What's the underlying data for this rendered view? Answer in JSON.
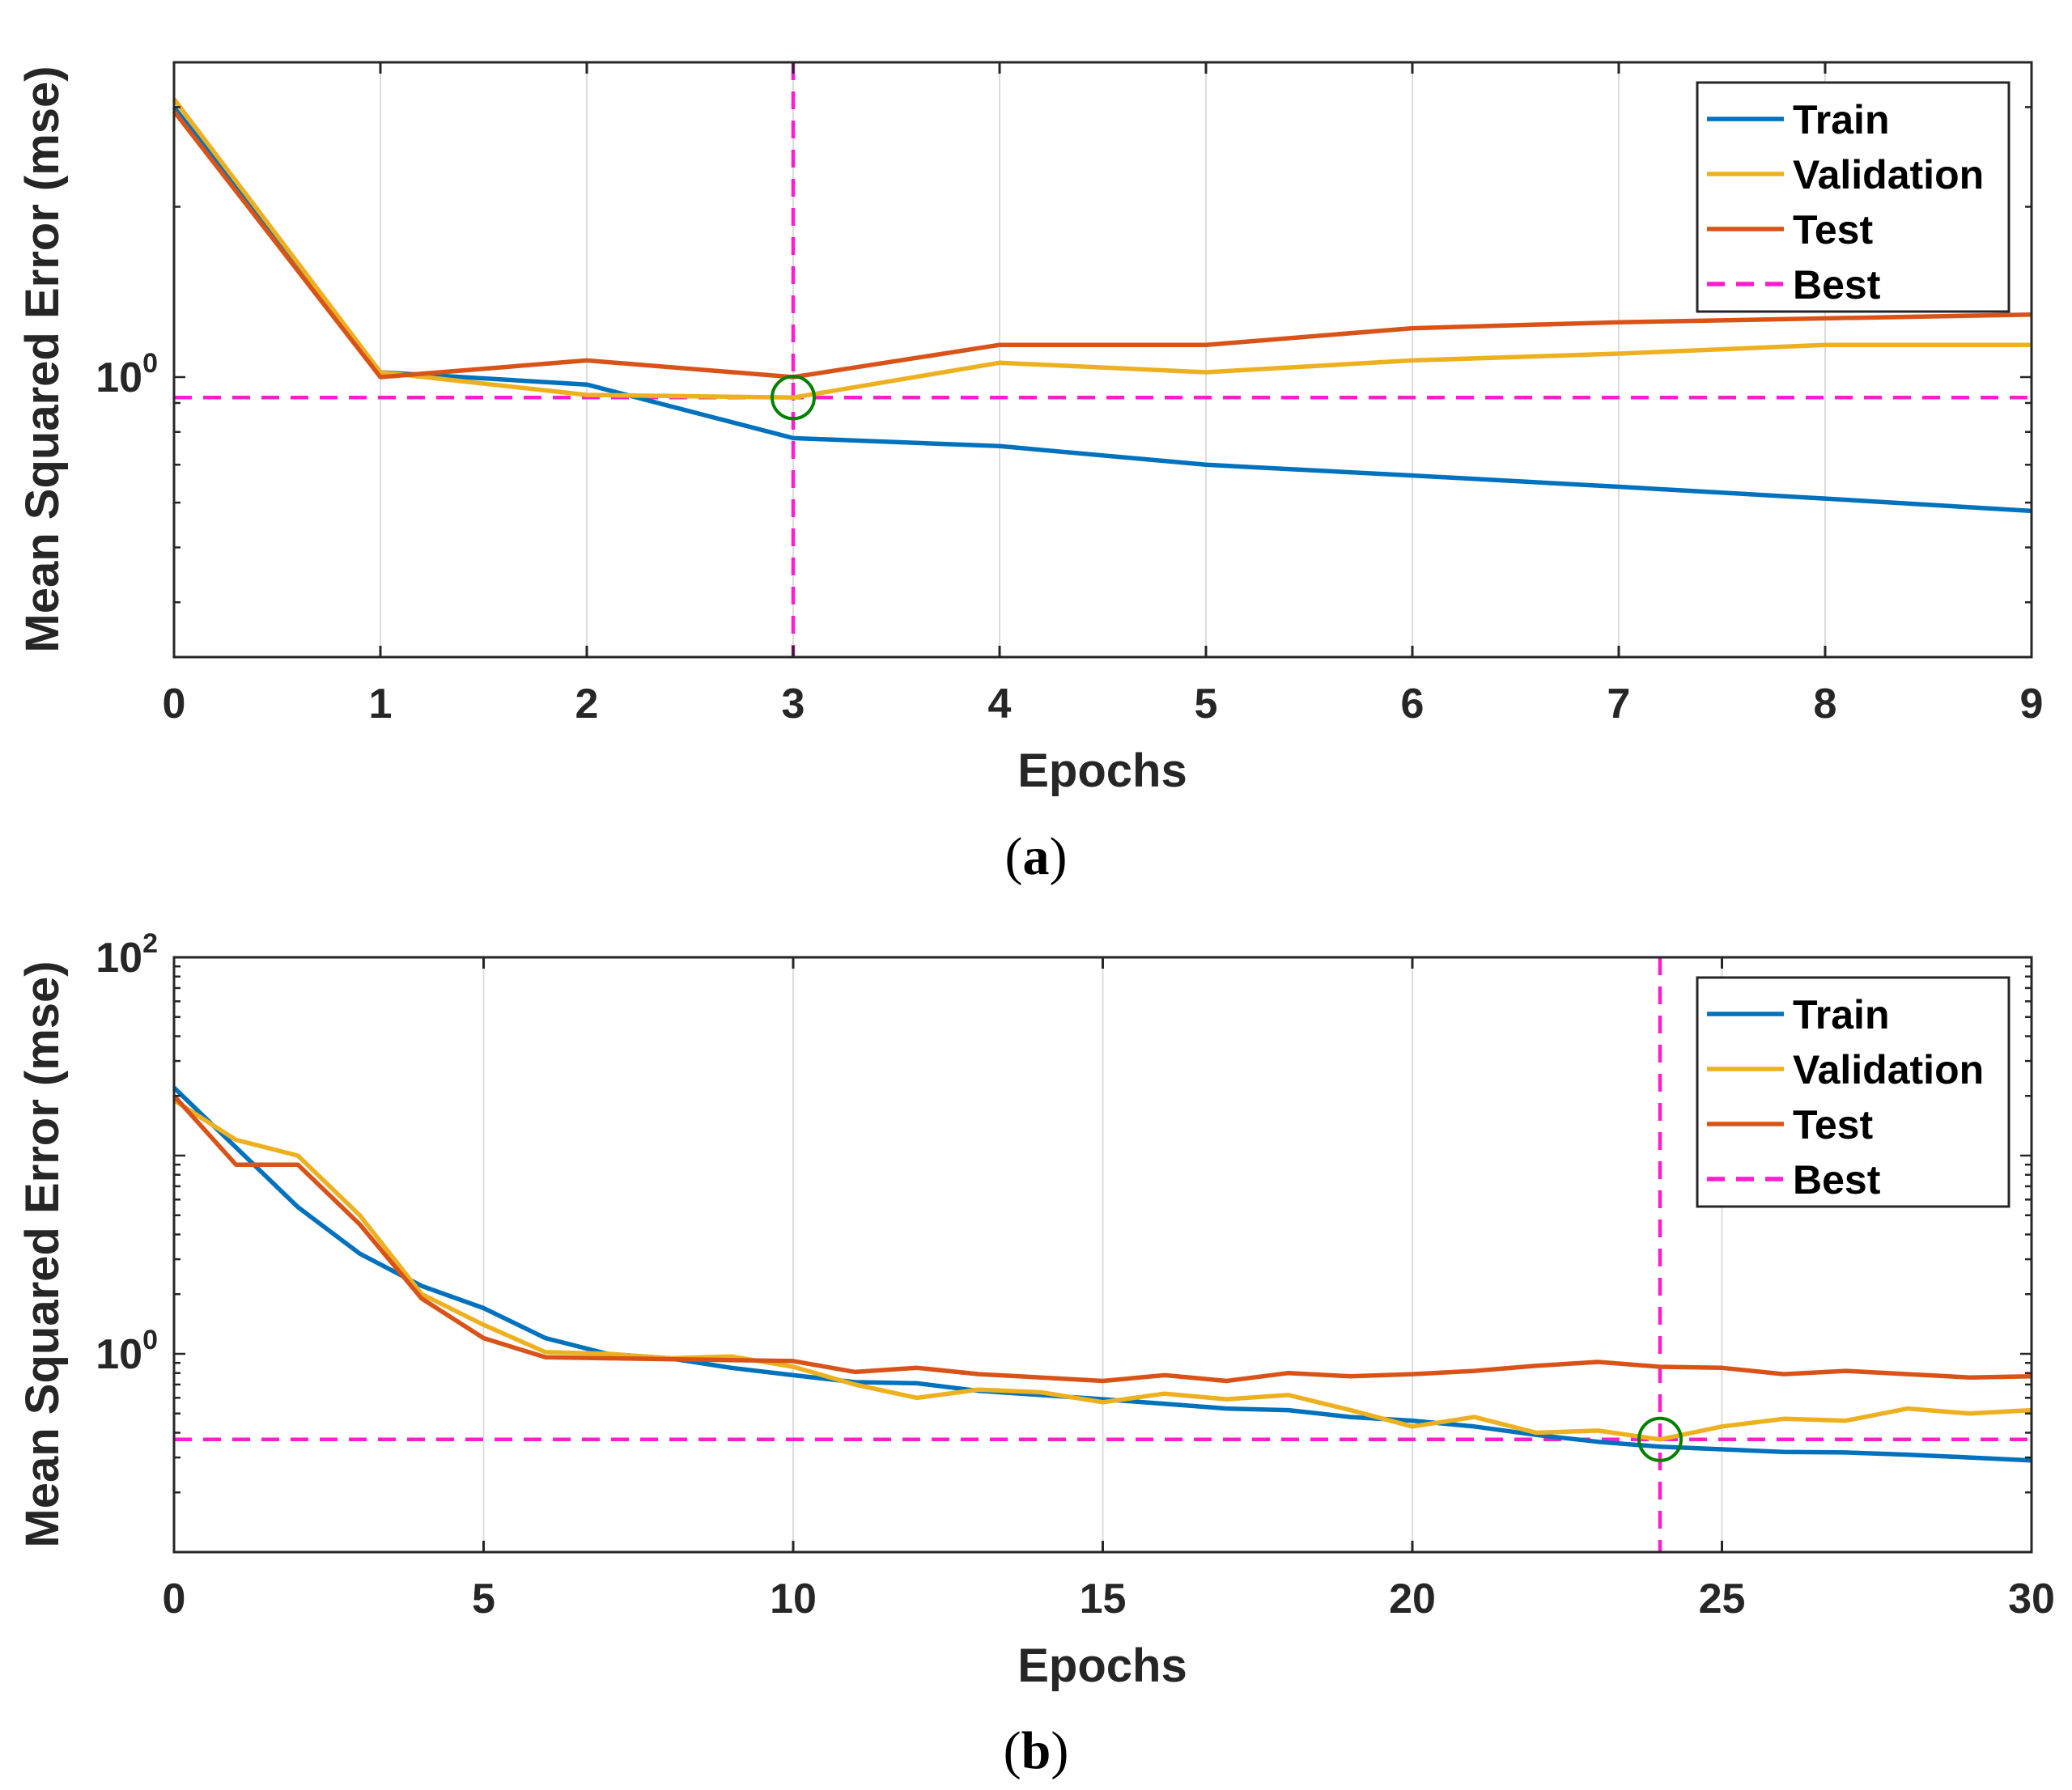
{
  "chart_data": [
    {
      "type": "line",
      "caption": "(a)",
      "caption_letter": "a",
      "xlabel": "Epochs",
      "ylabel": "Mean Squared Error  (mse)",
      "yscale": "log",
      "xlim": [
        0,
        9
      ],
      "ylim": [
        0.32,
        3.6
      ],
      "x_ticks": [
        "0",
        "1",
        "2",
        "3",
        "4",
        "5",
        "6",
        "7",
        "8",
        "9"
      ],
      "y_ticks": [
        {
          "value": 1,
          "base": "10",
          "exponent": "0"
        }
      ],
      "legend": [
        "Train",
        "Validation",
        "Test",
        "Best"
      ],
      "legend_position": "top-right",
      "best": {
        "epoch": 3,
        "value": 0.92
      },
      "series": [
        {
          "name": "Train",
          "color": "#0072BD",
          "x": [
            0,
            1,
            2,
            3,
            4,
            5,
            6,
            7,
            8,
            9
          ],
          "values": [
            3.0,
            1.02,
            0.97,
            0.78,
            0.755,
            0.7,
            0.67,
            0.64,
            0.61,
            0.58
          ]
        },
        {
          "name": "Validation",
          "color": "#EDB120",
          "x": [
            0,
            1,
            2,
            3,
            4,
            5,
            6,
            7,
            8,
            9
          ],
          "values": [
            3.1,
            1.02,
            0.93,
            0.92,
            1.06,
            1.02,
            1.07,
            1.1,
            1.14,
            1.14
          ]
        },
        {
          "name": "Test",
          "color": "#D95319",
          "x": [
            0,
            1,
            2,
            3,
            4,
            5,
            6,
            7,
            8,
            9
          ],
          "values": [
            2.95,
            1.0,
            1.07,
            1.0,
            1.14,
            1.14,
            1.22,
            1.25,
            1.27,
            1.29
          ]
        }
      ]
    },
    {
      "type": "line",
      "caption": "(b)",
      "caption_letter": "b",
      "xlabel": "Epochs",
      "ylabel": "Mean Squared Error  (mse)",
      "yscale": "log",
      "xlim": [
        0,
        30
      ],
      "ylim": [
        0.1,
        100
      ],
      "x_ticks": [
        "0",
        "5",
        "10",
        "15",
        "20",
        "25",
        "30"
      ],
      "y_ticks": [
        {
          "value": 1,
          "base": "10",
          "exponent": "0"
        },
        {
          "value": 100,
          "base": "10",
          "exponent": "2"
        }
      ],
      "legend": [
        "Train",
        "Validation",
        "Test",
        "Best"
      ],
      "legend_position": "top-right",
      "best": {
        "epoch": 24,
        "value": 0.37
      },
      "series": [
        {
          "name": "Train",
          "color": "#0072BD",
          "x": [
            0,
            1,
            2,
            3,
            4,
            5,
            6,
            7,
            8,
            9,
            10,
            11,
            12,
            13,
            14,
            15,
            16,
            17,
            18,
            19,
            20,
            21,
            22,
            23,
            24,
            25,
            26,
            27,
            28,
            29,
            30
          ],
          "values": [
            22,
            11,
            5.5,
            3.2,
            2.2,
            1.7,
            1.2,
            1.0,
            0.95,
            0.85,
            0.78,
            0.72,
            0.71,
            0.65,
            0.62,
            0.59,
            0.56,
            0.53,
            0.52,
            0.48,
            0.46,
            0.43,
            0.39,
            0.36,
            0.34,
            0.33,
            0.32,
            0.318,
            0.31,
            0.3,
            0.29
          ]
        },
        {
          "name": "Validation",
          "color": "#EDB120",
          "x": [
            0,
            1,
            2,
            3,
            4,
            5,
            6,
            7,
            8,
            9,
            10,
            11,
            12,
            13,
            14,
            15,
            16,
            17,
            18,
            19,
            20,
            21,
            22,
            23,
            24,
            25,
            26,
            27,
            28,
            29,
            30
          ],
          "values": [
            19,
            12,
            10,
            5,
            2,
            1.4,
            1.02,
            1.0,
            0.95,
            0.97,
            0.86,
            0.7,
            0.6,
            0.66,
            0.64,
            0.57,
            0.63,
            0.59,
            0.62,
            0.52,
            0.43,
            0.48,
            0.4,
            0.41,
            0.37,
            0.43,
            0.47,
            0.46,
            0.53,
            0.5,
            0.52
          ]
        },
        {
          "name": "Test",
          "color": "#D95319",
          "x": [
            0,
            1,
            2,
            3,
            4,
            5,
            6,
            7,
            8,
            9,
            10,
            11,
            12,
            13,
            14,
            15,
            16,
            17,
            18,
            19,
            20,
            21,
            22,
            23,
            24,
            25,
            26,
            27,
            28,
            29,
            30
          ],
          "values": [
            20,
            9,
            9,
            4.5,
            1.9,
            1.2,
            0.96,
            0.95,
            0.94,
            0.93,
            0.92,
            0.81,
            0.85,
            0.79,
            0.76,
            0.73,
            0.78,
            0.73,
            0.8,
            0.77,
            0.79,
            0.82,
            0.87,
            0.91,
            0.86,
            0.85,
            0.79,
            0.82,
            0.79,
            0.76,
            0.77
          ]
        }
      ]
    }
  ]
}
